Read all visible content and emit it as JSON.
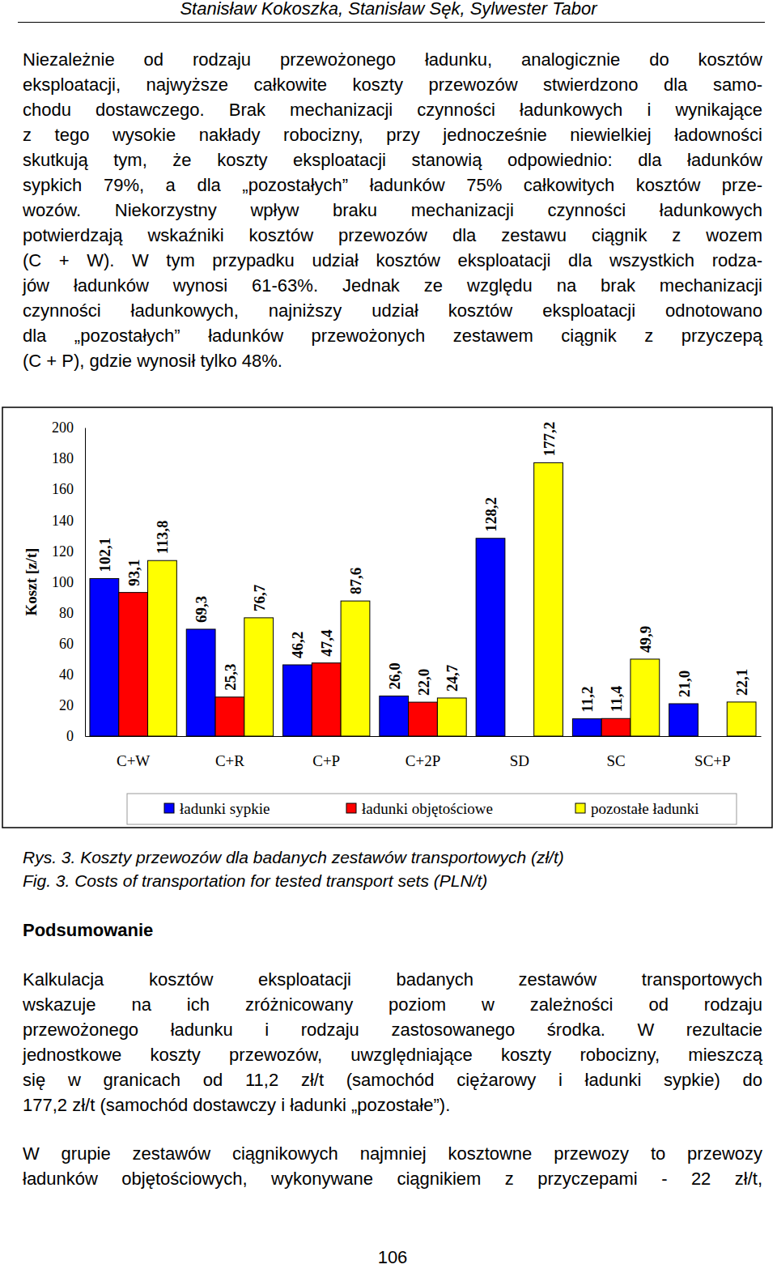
{
  "header": "Stanisław Kokoszka, Stanisław Sęk, Sylwester Tabor",
  "paragraphs": [
    [
      "Niezależnie od rodzaju przewożonego ładunku, analogicznie do kosztów",
      "eksploatacji, najwyższe całkowite koszty przewozów stwierdzono dla samo-",
      "chodu dostawczego. Brak mechanizacji czynności ładunkowych i wynikające",
      "z tego wysokie nakłady robocizny, przy jednocześnie niewielkiej ładowności",
      "skutkują tym, że koszty eksploatacji stanowią odpowiednio: dla ładunków",
      "sypkich 79%, a dla „pozostałych” ładunków 75% całkowitych kosztów prze-",
      "wozów. Niekorzystny wpływ braku mechanizacji czynności ładunkowych",
      "potwierdzają wskaźniki kosztów przewozów dla zestawu ciągnik z wozem",
      "(C + W). W tym przypadku udział kosztów eksploatacji dla wszystkich rodza-",
      "jów ładunków wynosi 61-63%. Jednak ze względu na brak mechanizacji",
      "czynności ładunkowych, najniższy udział kosztów eksploatacji odnotowano",
      "dla „pozostałych” ładunków przewożonych zestawem ciągnik z przyczepą",
      "(C + P), gdzie wynosił tylko 48%."
    ]
  ],
  "chart_data": {
    "type": "bar",
    "y_label": "Koszt [z/t]",
    "categories": [
      "C+W",
      "C+R",
      "C+P",
      "C+2P",
      "SD",
      "SC",
      "SC+P"
    ],
    "series": [
      {
        "name": "ładunki sypkie",
        "color": "#0000ff",
        "values": [
          102.1,
          69.3,
          46.2,
          26.0,
          128.2,
          11.2,
          21.0
        ],
        "value_labels": [
          "102,1",
          "69,3",
          "46,2",
          "26,0",
          "128,2",
          "11,2",
          "21,0"
        ]
      },
      {
        "name": "ładunki objętościowe",
        "color": "#ff0000",
        "values": [
          93.1,
          25.3,
          47.4,
          22.0,
          null,
          11.4,
          null
        ],
        "value_labels": [
          "93,1",
          "25,3",
          "47,4",
          "22,0",
          null,
          "11,4",
          null
        ]
      },
      {
        "name": "pozostałe ładunki",
        "color": "#ffff00",
        "values": [
          113.8,
          76.7,
          87.6,
          24.7,
          177.2,
          49.9,
          22.1
        ],
        "value_labels": [
          "113,8",
          "76,7",
          "87,6",
          "24,7",
          "177,2",
          "49,9",
          "22,1"
        ]
      }
    ],
    "ylim": [
      0,
      200
    ],
    "yticks": [
      0,
      20,
      40,
      60,
      80,
      100,
      120,
      140,
      160,
      180,
      200
    ],
    "grid": false,
    "legend": "bottom",
    "data_labels": true
  },
  "captions": [
    "Rys. 3. Koszty przewozów dla badanych zestawów transportowych (zł/t)",
    "Fig. 3. Costs of transportation for tested transport sets (PLN/t)"
  ],
  "section_title": "Podsumowanie",
  "summary": [
    [
      "Kalkulacja kosztów eksploatacji badanych zestawów transportowych",
      "wskazuje na ich zróżnicowany poziom w zależności od rodzaju",
      "przewożonego ładunku i rodzaju zastosowanego środka. W rezultacie",
      "jednostkowe koszty przewozów, uwzględniające koszty robocizny, mieszczą",
      "się w granicach od 11,2 zł/t (samochód ciężarowy i ładunki sypkie) do",
      "177,2 zł/t (samochód dostawczy i ładunki „pozostałe”)."
    ],
    [
      "W grupie zestawów ciągnikowych najmniej kosztowne przewozy to przewozy",
      "ładunków objętościowych, wykonywane ciągnikiem z przyczepami - 22 zł/t,"
    ]
  ],
  "page_number": "106"
}
